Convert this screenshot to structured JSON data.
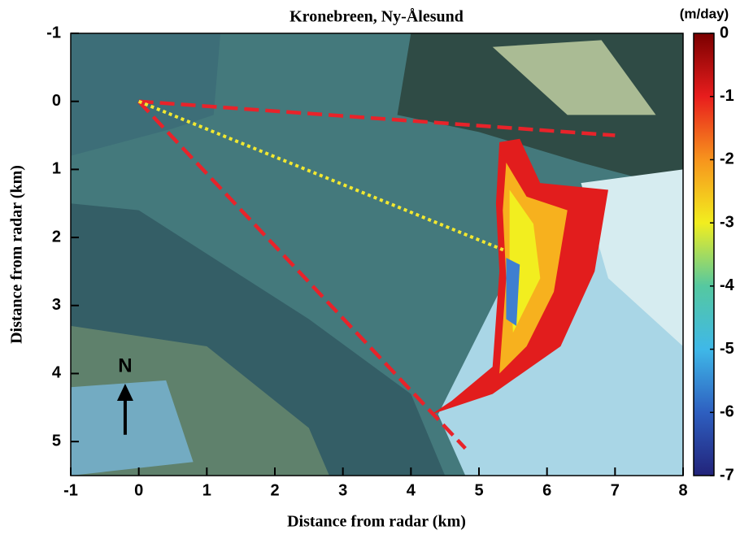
{
  "chart_data": {
    "type": "image",
    "title": "Kronebreen, Ny-Ålesund",
    "xlabel": "Distance from radar (km)",
    "ylabel": "Distance from radar (km)",
    "xlim": [
      -1,
      8
    ],
    "ylim": [
      -1,
      5.5
    ],
    "y_reversed": true,
    "xticks": [
      -1,
      0,
      1,
      2,
      3,
      4,
      5,
      6,
      7,
      8
    ],
    "yticks": [
      -1,
      0,
      1,
      2,
      3,
      4,
      5
    ],
    "lines": [
      {
        "color": "#e8232a",
        "style": "dashed",
        "x": [
          0,
          7
        ],
        "y": [
          0,
          0.5
        ]
      },
      {
        "color": "#e8232a",
        "style": "dashed",
        "x": [
          0,
          4.8
        ],
        "y": [
          0,
          5.1
        ]
      },
      {
        "color": "#f2e830",
        "style": "dotted",
        "x": [
          0,
          5.4
        ],
        "y": [
          0,
          2.2
        ]
      }
    ],
    "annotation": "N",
    "colorbar": {
      "label": "(m/day)",
      "lim": [
        -7,
        0
      ],
      "ticks": [
        0,
        -1,
        -2,
        -3,
        -4,
        -5,
        -6,
        -7
      ],
      "colors": [
        "#7a0000",
        "#e81d1d",
        "#f7941d",
        "#f2ee1f",
        "#55c8a0",
        "#3fb8e8",
        "#2e5fc0",
        "#22237a"
      ]
    }
  }
}
